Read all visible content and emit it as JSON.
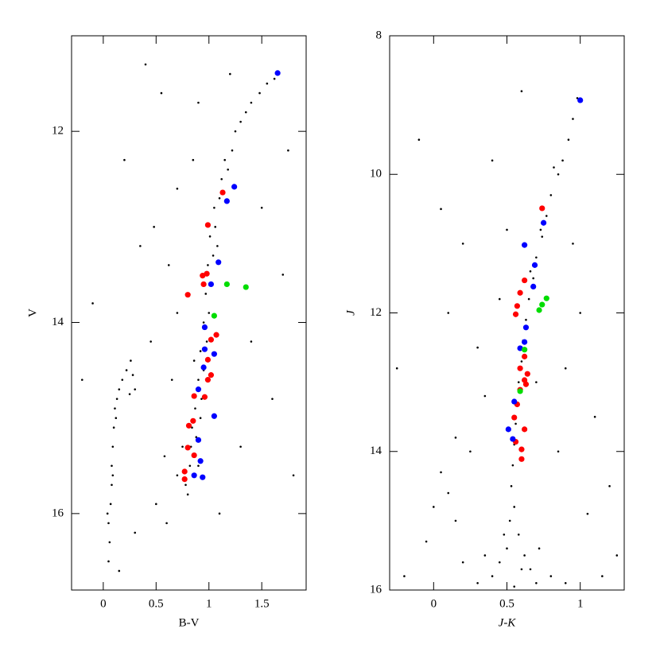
{
  "chart_data": [
    {
      "type": "scatter",
      "xlabel": "B-V",
      "ylabel": "V",
      "xlim": [
        -0.3,
        1.92
      ],
      "ylim": [
        11,
        16.8
      ],
      "invert_y": true,
      "xticks": [
        0,
        0.5,
        1,
        1.5
      ],
      "yticks": [
        12,
        14,
        16
      ],
      "series": [
        {
          "color": "#000000",
          "x": [
            0.8,
            0.78,
            0.85,
            0.82,
            0.9,
            0.83,
            0.88,
            0.84,
            0.92,
            0.87,
            0.93,
            0.9,
            0.95,
            0.92,
            0.98,
            0.95,
            1.0,
            0.97,
            1.02,
            0.99,
            1.04,
            1.01,
            1.06,
            1.05,
            1.1,
            1.12,
            1.18,
            1.15,
            1.22,
            1.25,
            1.3,
            1.35,
            1.4,
            1.48,
            1.55,
            1.62,
            0.7,
            0.75,
            0.86,
            1.08,
            0.05,
            0.06,
            0.05,
            0.07,
            0.08,
            0.08,
            0.09,
            0.1,
            0.11,
            0.13,
            0.15,
            0.18,
            0.22,
            0.26,
            0.28,
            0.3,
            0.25,
            0.12,
            0.04,
            0.09,
            0.4,
            0.55,
            0.2,
            0.7,
            0.48,
            0.62,
            -0.1,
            0.35,
            0.85,
            1.5,
            1.7,
            1.4,
            1.6,
            1.3,
            0.5,
            0.3,
            0.6,
            1.2,
            0.9,
            1.75,
            -0.2,
            0.45,
            0.65,
            1.8,
            0.15,
            1.1,
            0.58,
            0.7
          ],
          "values": [
            15.8,
            15.7,
            15.6,
            15.5,
            15.5,
            15.3,
            15.2,
            15.1,
            15.0,
            14.9,
            14.8,
            14.6,
            14.5,
            14.3,
            14.2,
            14.0,
            13.9,
            13.7,
            13.6,
            13.4,
            13.3,
            13.1,
            13.0,
            12.8,
            12.7,
            12.5,
            12.4,
            12.3,
            12.2,
            12.0,
            11.9,
            11.8,
            11.7,
            11.6,
            11.5,
            11.45,
            15.6,
            15.3,
            14.4,
            13.2,
            16.5,
            16.3,
            16.1,
            15.9,
            15.7,
            15.5,
            15.3,
            15.1,
            14.9,
            14.8,
            14.7,
            14.6,
            14.5,
            14.4,
            14.55,
            14.7,
            14.75,
            15.0,
            16.0,
            15.6,
            11.3,
            11.6,
            12.3,
            12.6,
            13.0,
            13.4,
            13.8,
            13.2,
            12.3,
            12.8,
            13.5,
            14.2,
            14.8,
            15.3,
            15.9,
            16.2,
            16.1,
            11.4,
            11.7,
            12.2,
            14.6,
            14.2,
            14.6,
            15.6,
            16.6,
            16.0,
            15.4,
            13.9
          ]
        },
        {
          "color": "#ff0000",
          "x": [
            1.13,
            0.99,
            0.98,
            0.94,
            0.8,
            0.95,
            1.07,
            1.02,
            0.99,
            1.02,
            0.99,
            0.86,
            0.96,
            0.85,
            0.81,
            0.8,
            0.86,
            0.77,
            0.77
          ],
          "values": [
            12.64,
            12.98,
            13.49,
            13.51,
            13.71,
            13.6,
            14.13,
            14.18,
            14.39,
            14.55,
            14.6,
            14.77,
            14.78,
            15.03,
            15.08,
            15.31,
            15.39,
            15.56,
            15.64
          ]
        },
        {
          "color": "#0000ff",
          "x": [
            1.65,
            1.24,
            1.17,
            1.09,
            1.02,
            0.96,
            0.96,
            1.05,
            0.95,
            0.9,
            1.05,
            0.9,
            0.92,
            0.86,
            0.94
          ],
          "values": [
            11.39,
            12.58,
            12.73,
            13.37,
            13.6,
            14.05,
            14.28,
            14.33,
            14.47,
            14.7,
            14.98,
            15.23,
            15.45,
            15.6,
            15.62
          ]
        },
        {
          "color": "#00dd00",
          "x": [
            1.17,
            1.35,
            1.05
          ],
          "values": [
            13.6,
            13.63,
            13.93
          ]
        }
      ]
    },
    {
      "type": "scatter",
      "xlabel": "J-K",
      "ylabel": "J",
      "xlim": [
        -0.3,
        1.3
      ],
      "ylim": [
        8,
        16
      ],
      "invert_y": true,
      "xticks": [
        0,
        0.5,
        1
      ],
      "yticks": [
        8,
        10,
        12,
        14,
        16
      ],
      "series": [
        {
          "color": "#000000",
          "x": [
            0.98,
            0.95,
            0.92,
            0.88,
            0.85,
            0.8,
            0.77,
            0.74,
            0.7,
            0.68,
            0.65,
            0.63,
            0.61,
            0.6,
            0.58,
            0.57,
            0.56,
            0.55,
            0.54,
            0.53,
            0.55,
            0.52,
            0.58,
            0.5,
            0.62,
            0.45,
            0.66,
            0.4,
            0.7,
            0.55,
            0.35,
            0.8,
            0.9,
            0.3,
            0.6,
            0.48,
            0.72,
            0.82,
            0.73,
            0.66,
            0.05,
            0.1,
            0.0,
            0.15,
            -0.05,
            0.2,
            -0.2,
            0.25,
            0.3,
            0.2,
            0.4,
            -0.1,
            0.5,
            0.35,
            -0.25,
            0.1,
            0.9,
            1.0,
            1.1,
            1.2,
            1.25,
            1.05,
            0.95,
            0.85,
            1.15,
            0.6,
            0.45,
            0.05,
            0.7,
            0.15
          ],
          "values": [
            8.9,
            9.2,
            9.5,
            9.8,
            10.0,
            10.3,
            10.6,
            10.9,
            11.2,
            11.5,
            11.8,
            12.1,
            12.4,
            12.7,
            13.0,
            13.3,
            13.6,
            13.9,
            14.2,
            14.5,
            14.8,
            15.0,
            15.2,
            15.4,
            15.5,
            15.6,
            15.7,
            15.8,
            15.9,
            15.95,
            15.5,
            15.8,
            15.9,
            15.9,
            15.7,
            15.2,
            15.4,
            9.9,
            10.8,
            11.4,
            14.3,
            14.6,
            14.8,
            15.0,
            15.3,
            15.6,
            15.8,
            14.0,
            12.5,
            11.0,
            9.8,
            9.5,
            10.8,
            13.2,
            12.8,
            12.0,
            12.8,
            12.0,
            13.5,
            14.5,
            15.5,
            14.9,
            11.0,
            14.0,
            15.8,
            8.8,
            11.8,
            10.5,
            13.0,
            13.8
          ]
        },
        {
          "color": "#ff0000",
          "x": [
            0.74,
            0.62,
            0.59,
            0.57,
            0.56,
            0.62,
            0.59,
            0.64,
            0.62,
            0.59,
            0.63,
            0.57,
            0.55,
            0.62,
            0.56,
            0.6,
            0.6
          ],
          "values": [
            10.49,
            11.53,
            11.71,
            11.9,
            12.02,
            12.63,
            12.8,
            12.88,
            12.97,
            13.11,
            13.03,
            13.32,
            13.51,
            13.68,
            13.86,
            13.97,
            14.11
          ]
        },
        {
          "color": "#0000ff",
          "x": [
            1.0,
            0.75,
            0.62,
            0.69,
            0.68,
            0.63,
            0.62,
            0.59,
            0.55,
            0.51,
            0.54
          ],
          "values": [
            8.93,
            10.7,
            11.02,
            11.31,
            11.62,
            12.21,
            12.42,
            12.51,
            13.28,
            13.68,
            13.82
          ]
        },
        {
          "color": "#00dd00",
          "x": [
            0.77,
            0.74,
            0.72,
            0.62,
            0.59
          ],
          "values": [
            11.79,
            11.88,
            11.96,
            12.53,
            13.13
          ]
        }
      ]
    }
  ]
}
